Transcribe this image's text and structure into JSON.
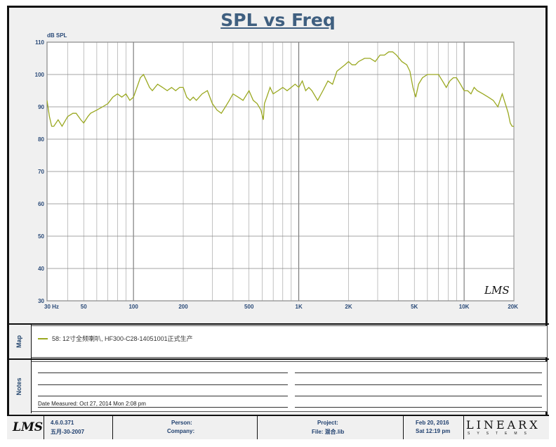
{
  "chart_data": {
    "type": "line",
    "title": "SPL vs Freq",
    "ylabel": "dB SPL",
    "xscale": "log",
    "xlim": [
      30,
      20000
    ],
    "ylim": [
      30,
      110
    ],
    "yticks": [
      110,
      100,
      90,
      80,
      70,
      60,
      50,
      40,
      30
    ],
    "xticks": [
      {
        "value": 30,
        "label": "30 Hz"
      },
      {
        "value": 50,
        "label": "50"
      },
      {
        "value": 100,
        "label": "100"
      },
      {
        "value": 200,
        "label": "200"
      },
      {
        "value": 500,
        "label": "500"
      },
      {
        "value": 1000,
        "label": "1K"
      },
      {
        "value": 2000,
        "label": "2K"
      },
      {
        "value": 5000,
        "label": "5K"
      },
      {
        "value": 10000,
        "label": "10K"
      },
      {
        "value": 20000,
        "label": "20K"
      }
    ],
    "grid": true,
    "series": [
      {
        "name": "58: 12寸全频喇叭 HF300-C28-14051001正式生产",
        "color": "#9aa820",
        "x": [
          30,
          31,
          32,
          33,
          35,
          37,
          40,
          43,
          45,
          48,
          50,
          53,
          55,
          60,
          65,
          70,
          75,
          80,
          85,
          90,
          95,
          100,
          105,
          110,
          115,
          120,
          125,
          130,
          140,
          150,
          160,
          170,
          180,
          190,
          200,
          210,
          220,
          230,
          240,
          260,
          280,
          300,
          320,
          340,
          360,
          380,
          400,
          430,
          460,
          500,
          530,
          560,
          590,
          610,
          620,
          640,
          670,
          700,
          750,
          800,
          850,
          900,
          950,
          1000,
          1050,
          1100,
          1150,
          1200,
          1300,
          1400,
          1500,
          1600,
          1700,
          1800,
          1900,
          2000,
          2100,
          2200,
          2300,
          2500,
          2700,
          2900,
          3100,
          3300,
          3500,
          3700,
          3900,
          4200,
          4500,
          4700,
          4900,
          5100,
          5300,
          5600,
          6000,
          6500,
          7000,
          7400,
          7800,
          8200,
          8600,
          9000,
          9500,
          10000,
          10500,
          11000,
          11500,
          12000,
          13000,
          14000,
          15000,
          16000,
          17000,
          17500,
          18000,
          18500,
          19000,
          19500,
          20000
        ],
        "y": [
          92,
          87,
          84,
          84,
          86,
          84,
          87,
          88,
          88,
          86,
          85,
          87,
          88,
          89,
          90,
          91,
          93,
          94,
          93,
          94,
          92,
          93,
          96,
          99,
          100,
          98,
          96,
          95,
          97,
          96,
          95,
          96,
          95,
          96,
          96,
          93,
          92,
          93,
          92,
          94,
          95,
          91,
          89,
          88,
          90,
          92,
          94,
          93,
          92,
          95,
          92,
          91,
          89,
          86,
          91,
          93,
          96,
          94,
          95,
          96,
          95,
          96,
          97,
          96,
          98,
          95,
          96,
          95,
          92,
          95,
          98,
          97,
          101,
          102,
          103,
          104,
          103,
          103,
          104,
          105,
          105,
          104,
          106,
          106,
          107,
          107,
          106,
          104,
          103,
          101,
          96,
          93,
          97,
          99,
          100,
          100,
          100,
          98,
          96,
          98,
          99,
          99,
          97,
          95,
          95,
          94,
          96,
          95,
          94,
          93,
          92,
          90,
          94,
          92,
          90,
          88,
          85,
          84,
          84
        ]
      }
    ],
    "annotations": [
      "LMS"
    ]
  },
  "map_panel": {
    "label": "Map",
    "legend": "58: 12寸全频喇叭, HF300-C28-14051001正式生产"
  },
  "notes_panel": {
    "label": "Notes",
    "date_measured": "Date Measured: Oct 27, 2014  Mon  2:08 pm"
  },
  "footer": {
    "logo": "LMS",
    "version": "4.6.0.371",
    "version_date": "五月-30-2007",
    "person_label": "Person:",
    "company_label": "Company:",
    "project_label": "Project:",
    "file_label": "File: 混合.lib",
    "date": "Feb 20, 2016",
    "time": "Sat 12:19 pm",
    "brand": "LINEARX",
    "brand_sub": "SYSTEMS"
  }
}
